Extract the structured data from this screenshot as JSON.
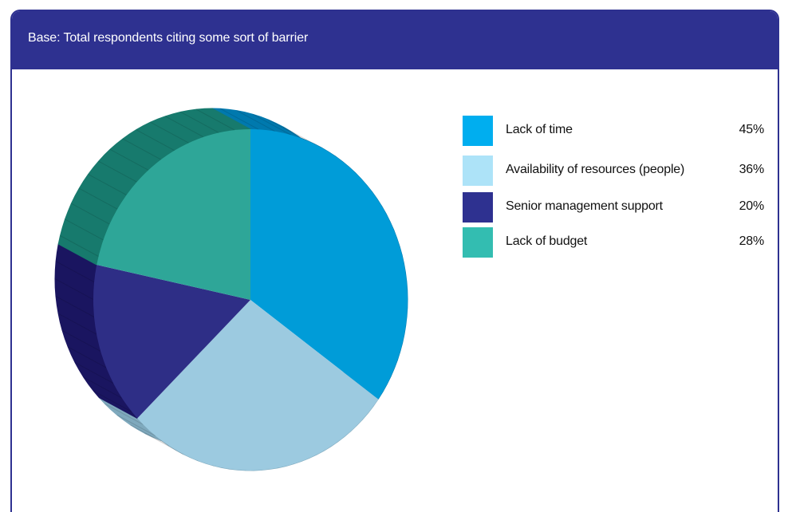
{
  "header": {
    "base_text": "Base: Total respondents citing some sort of barrier"
  },
  "chart_data": {
    "type": "pie",
    "categories": [
      "Lack of time",
      "Availability of resources (people)",
      "Senior management support",
      "Lack of budget"
    ],
    "values": [
      45,
      36,
      20,
      28
    ],
    "value_labels": [
      "45%",
      "36%",
      "20%",
      "28%"
    ],
    "colors": [
      "#009cd8",
      "#9ccae0",
      "#2e2e86",
      "#2ea698"
    ],
    "legend_colors": [
      "#00aeef",
      "#ade3f8",
      "#2e3190",
      "#33bdb1"
    ],
    "side_colors": [
      "#0079ae",
      "#7fa9bd",
      "#1a1560",
      "#177a6d"
    ],
    "legend_position": "right"
  }
}
